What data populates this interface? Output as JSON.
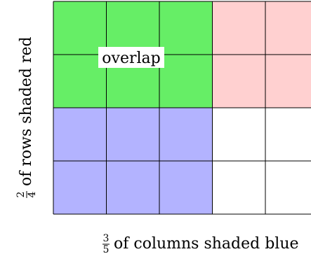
{
  "grid": {
    "columns": 5,
    "rows": 4,
    "blue_columns": 3,
    "red_rows": 2,
    "colors": {
      "overlap": "#66ee66",
      "red": "#ffd0d0",
      "blue": "#b3b3ff",
      "empty": "#ffffff",
      "line": "#000000"
    }
  },
  "labels": {
    "overlap": "overlap",
    "x_fraction": {
      "numerator": "3",
      "denominator": "5"
    },
    "x_text": "of columns shaded blue",
    "y_fraction": {
      "numerator": "2",
      "denominator": "4"
    },
    "y_text": "of rows shaded red"
  }
}
